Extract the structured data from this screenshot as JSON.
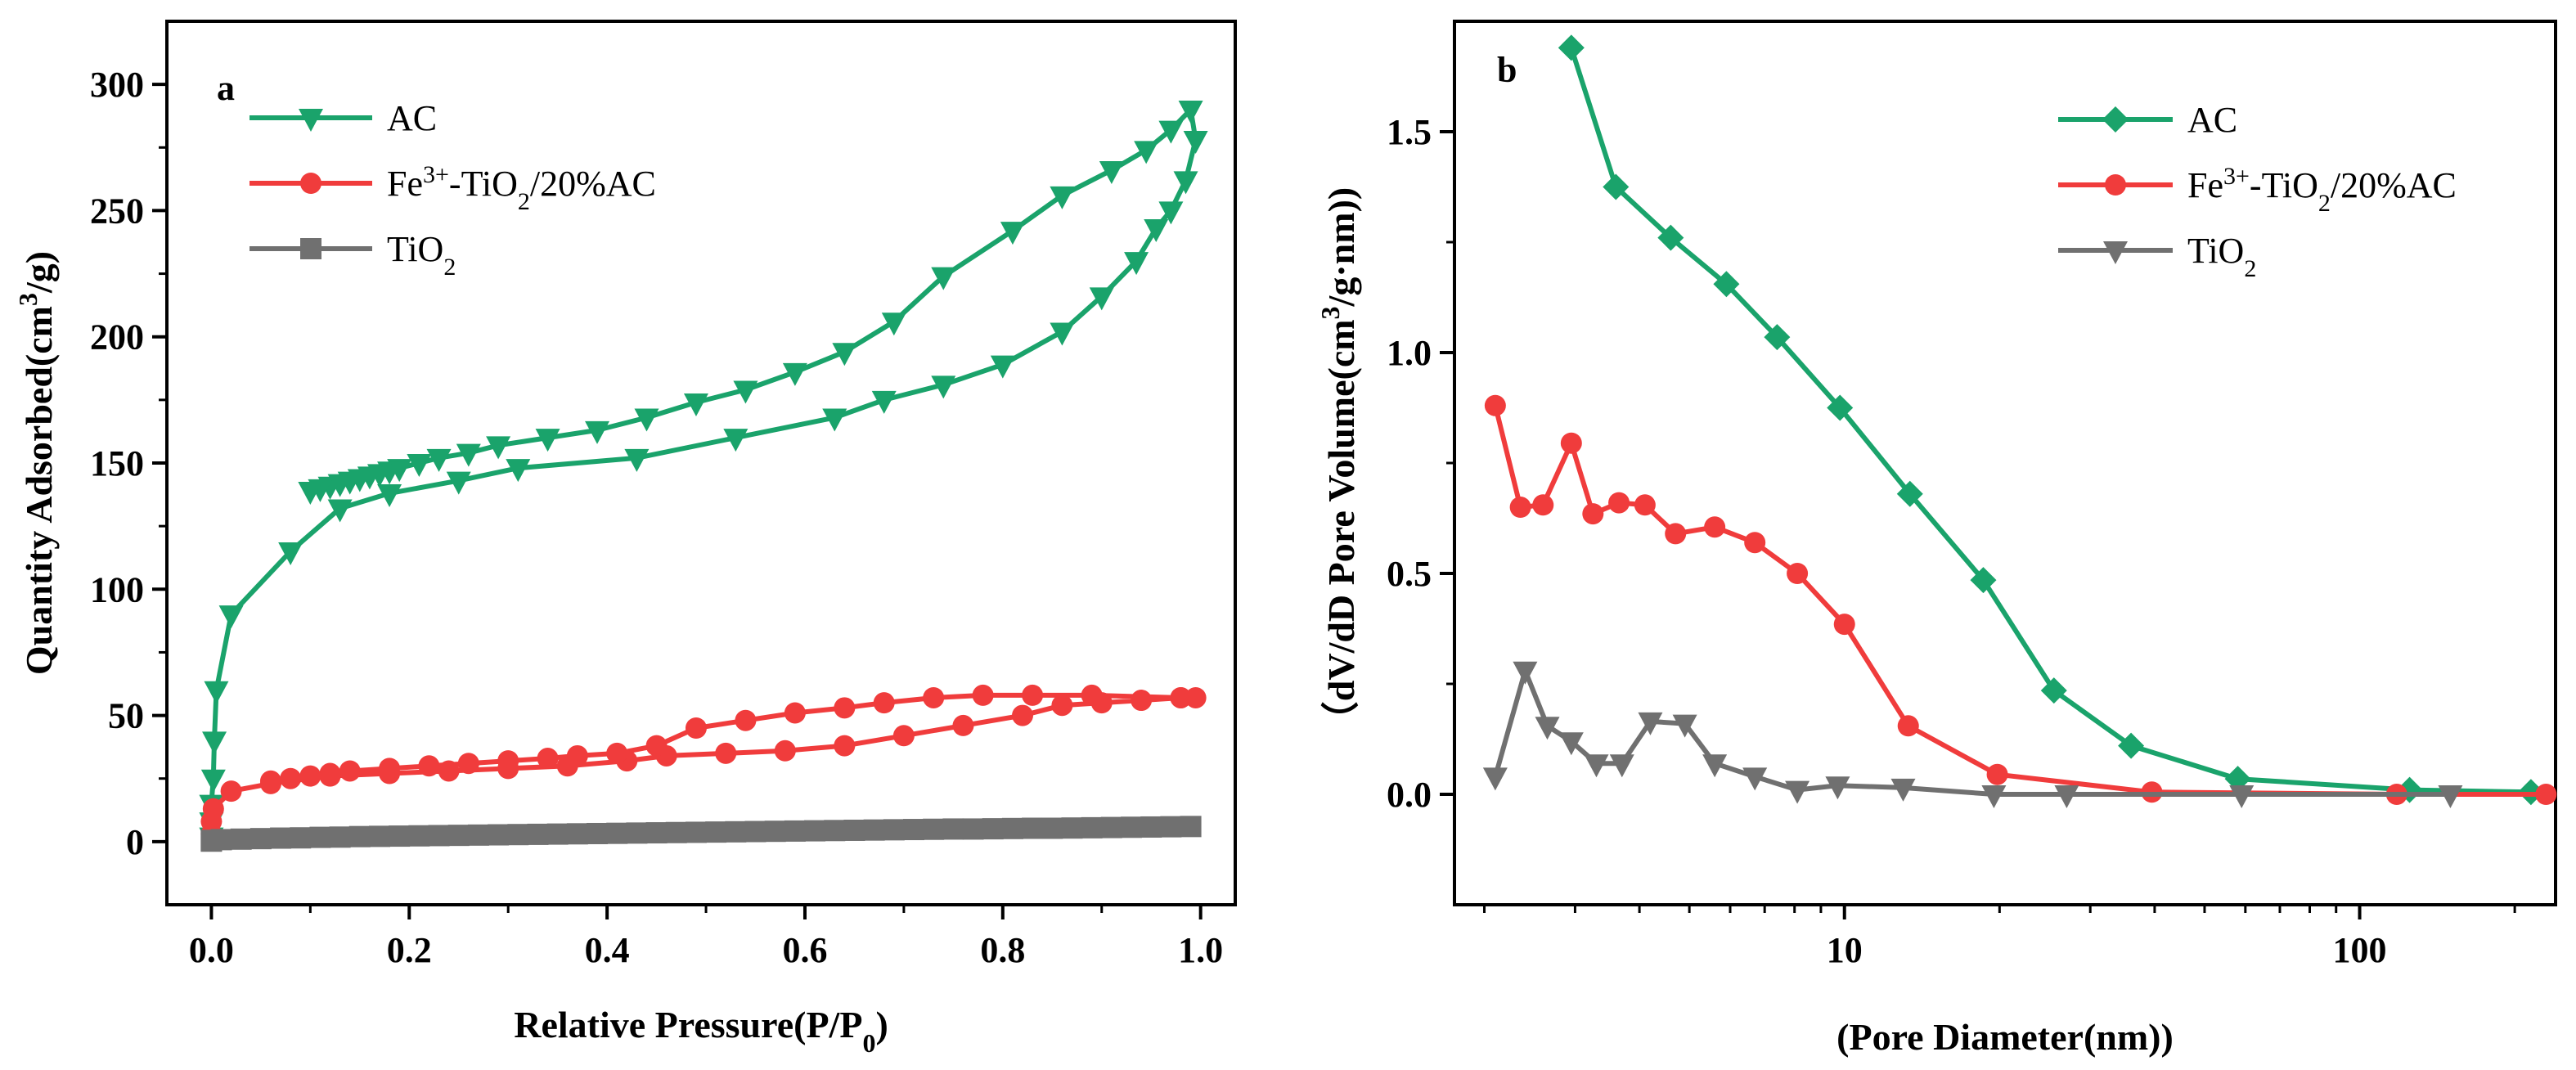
{
  "chart_data": [
    {
      "type": "line",
      "panel_label": "a",
      "title": "",
      "xlabel": "Relative Pressure(P/P",
      "xlabel_sub": "0",
      "xlabel_tail": ")",
      "ylabel": "Quantity Adsorbed(cm",
      "ylabel_sup": "3",
      "ylabel_tail": "/g)",
      "xlim": [
        -0.045,
        1.035
      ],
      "ylim": [
        -25,
        325
      ],
      "xscale": "linear",
      "xticks": [
        0.0,
        0.2,
        0.4,
        0.6,
        0.8,
        1.0
      ],
      "xtick_labels": [
        "0.0",
        "0.2",
        "0.4",
        "0.6",
        "0.8",
        "1.0"
      ],
      "yticks": [
        0,
        50,
        100,
        150,
        200,
        250,
        300
      ],
      "ytick_labels": [
        "0",
        "50",
        "100",
        "150",
        "200",
        "250",
        "300"
      ],
      "legend_position": "top-left",
      "series": [
        {
          "name": "AC",
          "color": "#1aa36b",
          "marker": "triangle-down",
          "x": [
            0.0,
            0.0,
            0.0,
            0.002,
            0.003,
            0.005,
            0.02,
            0.08,
            0.13,
            0.18,
            0.25,
            0.31,
            0.43,
            0.53,
            0.63,
            0.68,
            0.74,
            0.8,
            0.86,
            0.9,
            0.935,
            0.955,
            0.97,
            0.985,
            0.995,
            0.99,
            0.97,
            0.945,
            0.91,
            0.86,
            0.81,
            0.74,
            0.69,
            0.64,
            0.59,
            0.54,
            0.49,
            0.44,
            0.39,
            0.34,
            0.29,
            0.26,
            0.23,
            0.21,
            0.19,
            0.18,
            0.17,
            0.16,
            0.15,
            0.14,
            0.13,
            0.12,
            0.11,
            0.1
          ],
          "values": [
            2,
            8,
            15,
            25,
            40,
            60,
            90,
            115,
            132,
            138,
            143,
            148,
            152,
            160,
            168,
            175,
            181,
            189,
            202,
            216,
            230,
            243,
            250,
            262,
            278,
            290,
            282,
            274,
            266,
            256,
            242,
            224,
            206,
            194,
            186,
            179,
            174,
            168,
            163,
            160,
            157,
            154,
            152,
            150,
            148,
            147,
            146,
            145,
            144,
            143,
            142,
            141,
            140,
            139
          ]
        },
        {
          "name": "Fe3+-TiO2/20%AC",
          "legend_main": "Fe",
          "legend_sup": "3+",
          "legend_mid": "-TiO",
          "legend_sub": "2",
          "legend_tail": "/20%AC",
          "color": "#f03c3c",
          "marker": "circle",
          "x": [
            0.0,
            0.0,
            0.002,
            0.02,
            0.06,
            0.12,
            0.18,
            0.24,
            0.3,
            0.36,
            0.42,
            0.46,
            0.52,
            0.58,
            0.64,
            0.7,
            0.76,
            0.82,
            0.86,
            0.9,
            0.94,
            0.98,
            0.995,
            0.98,
            0.89,
            0.83,
            0.78,
            0.73,
            0.68,
            0.64,
            0.59,
            0.54,
            0.49,
            0.45,
            0.41,
            0.37,
            0.34,
            0.3,
            0.26,
            0.22,
            0.18,
            0.14,
            0.12,
            0.1,
            0.08,
            0.06
          ],
          "values": [
            3,
            8,
            13,
            20,
            23,
            26,
            27,
            28,
            29,
            30,
            32,
            34,
            35,
            36,
            38,
            42,
            46,
            50,
            54,
            55,
            56,
            57,
            57,
            57,
            58,
            58,
            58,
            57,
            55,
            53,
            51,
            48,
            45,
            38,
            35,
            34,
            33,
            32,
            31,
            30,
            29,
            28,
            27,
            26,
            25,
            24
          ]
        },
        {
          "name": "TiO2",
          "legend_main": "TiO",
          "legend_sub": "2",
          "color": "#707070",
          "marker": "square",
          "x": [
            0.0,
            0.0,
            0.01,
            0.03,
            0.05,
            0.07,
            0.09,
            0.11,
            0.13,
            0.15,
            0.17,
            0.19,
            0.21,
            0.23,
            0.25,
            0.27,
            0.29,
            0.31,
            0.33,
            0.35,
            0.37,
            0.39,
            0.41,
            0.43,
            0.45,
            0.47,
            0.49,
            0.51,
            0.53,
            0.55,
            0.57,
            0.59,
            0.61,
            0.63,
            0.65,
            0.67,
            0.69,
            0.71,
            0.73,
            0.75,
            0.77,
            0.79,
            0.81,
            0.83,
            0.85,
            0.87,
            0.89,
            0.91,
            0.93,
            0.95,
            0.97,
            0.99
          ],
          "values": [
            0.2,
            0.5,
            0.8,
            1.0,
            1.2,
            1.4,
            1.5,
            1.7,
            1.8,
            2.0,
            2.1,
            2.2,
            2.3,
            2.4,
            2.5,
            2.6,
            2.7,
            2.8,
            2.9,
            3.0,
            3.1,
            3.2,
            3.3,
            3.4,
            3.5,
            3.6,
            3.7,
            3.8,
            3.9,
            4.0,
            4.1,
            4.2,
            4.3,
            4.4,
            4.5,
            4.6,
            4.7,
            4.8,
            4.9,
            5.0,
            5.0,
            5.1,
            5.2,
            5.3,
            5.3,
            5.4,
            5.5,
            5.6,
            5.7,
            5.8,
            5.9,
            6.0
          ]
        }
      ]
    },
    {
      "type": "line",
      "panel_label": "b",
      "title": "",
      "xlabel": "(Pore Diameter(nm))",
      "ylabel": "（dV/dD Pore Volume(cm",
      "ylabel_sup": "3",
      "ylabel_tail": "/g·nm))",
      "xlim": [
        1.75,
        240
      ],
      "ylim": [
        -0.25,
        1.75
      ],
      "xscale": "log",
      "xticks": [
        10,
        100
      ],
      "xtick_labels": [
        "10",
        "100"
      ],
      "yticks": [
        0.0,
        0.5,
        1.0,
        1.5
      ],
      "ytick_labels": [
        "0.0",
        "0.5",
        "1.0",
        "1.5"
      ],
      "legend_position": "top-right",
      "series": [
        {
          "name": "AC",
          "color": "#1aa36b",
          "marker": "diamond",
          "x": [
            2.95,
            3.6,
            4.6,
            5.9,
            7.4,
            9.8,
            13.4,
            18.6,
            25.5,
            36,
            58,
            125,
            215
          ],
          "values": [
            1.69,
            1.375,
            1.26,
            1.155,
            1.035,
            0.875,
            0.68,
            0.485,
            0.235,
            0.11,
            0.035,
            0.01,
            0.005
          ]
        },
        {
          "name": "Fe3+-TiO2/20%AC",
          "legend_main": "Fe",
          "legend_sup": "3+",
          "legend_mid": "-TiO",
          "legend_sub": "2",
          "legend_tail": "/20%AC",
          "color": "#f03c3c",
          "marker": "circle",
          "x": [
            2.1,
            2.35,
            2.6,
            2.95,
            3.25,
            3.65,
            4.1,
            4.7,
            5.6,
            6.7,
            8.1,
            10.0,
            13.3,
            19.8,
            39.5,
            118,
            230
          ],
          "values": [
            0.88,
            0.65,
            0.655,
            0.795,
            0.635,
            0.66,
            0.655,
            0.59,
            0.605,
            0.57,
            0.5,
            0.385,
            0.155,
            0.045,
            0.005,
            0.0,
            0.0
          ]
        },
        {
          "name": "TiO2",
          "legend_main": "TiO",
          "legend_sub": "2",
          "color": "#707070",
          "marker": "triangle-down",
          "x": [
            2.1,
            2.4,
            2.65,
            2.95,
            3.3,
            3.7,
            4.2,
            4.9,
            5.6,
            6.7,
            8.1,
            9.7,
            13,
            19.5,
            27,
            59,
            150
          ],
          "values": [
            0.04,
            0.28,
            0.155,
            0.12,
            0.07,
            0.07,
            0.165,
            0.16,
            0.07,
            0.04,
            0.01,
            0.02,
            0.015,
            0.0,
            0.0,
            0.0,
            0.0
          ]
        }
      ]
    }
  ]
}
